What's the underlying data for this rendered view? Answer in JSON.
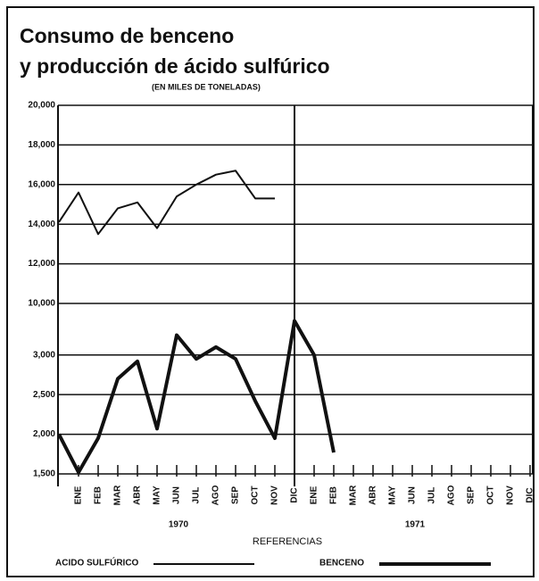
{
  "chart_data": {
    "type": "line",
    "title": "Consumo de benceno",
    "subtitle": "y producción de ácido sulfúrico",
    "note": "(EN MILES DE TONELADAS)",
    "categories": [
      null,
      "ENE",
      "FEB",
      "MAR",
      "ABR",
      "MAY",
      "JUN",
      "JUL",
      "AGO",
      "SEP",
      "OCT",
      "NOV",
      "DIC",
      "ENE",
      "FEB",
      "MAR",
      "ABR",
      "MAY",
      "JUN",
      "JUL",
      "AGO",
      "SEP",
      "OCT",
      "NOV",
      "DIC"
    ],
    "year_labels": [
      "1970",
      "1971"
    ],
    "legend_title": "REFERENCIAS",
    "grid": true,
    "series": [
      {
        "name": "ACIDO SULFÚRICO",
        "color": "#111111",
        "line_width": 2,
        "values": [
          14100,
          15600,
          13500,
          14800,
          15100,
          13800,
          15400,
          16000,
          16500,
          16700,
          15300,
          15300,
          null,
          null,
          null,
          null,
          null,
          null,
          null,
          null,
          null,
          null,
          null,
          null,
          null
        ],
        "ylim": [
          10000,
          20000
        ],
        "yticks": [
          {
            "value": 10000,
            "label": "10,000"
          },
          {
            "value": 12000,
            "label": "12,000"
          },
          {
            "value": 14000,
            "label": "14,000"
          },
          {
            "value": 16000,
            "label": "16,000"
          },
          {
            "value": 18000,
            "label": "18,000"
          },
          {
            "value": 20000,
            "label": "20,000"
          }
        ]
      },
      {
        "name": "BENCENO",
        "color": "#111111",
        "line_width": 4,
        "values": [
          2000,
          1520,
          1950,
          2700,
          2920,
          2070,
          3250,
          2950,
          3100,
          2950,
          2420,
          1950,
          3430,
          3000,
          1770,
          null,
          null,
          null,
          null,
          null,
          null,
          null,
          null,
          null,
          null
        ],
        "ylim": [
          1500,
          3650
        ],
        "yticks": [
          {
            "value": 1500,
            "label": "1,500"
          },
          {
            "value": 2000,
            "label": "2,000"
          },
          {
            "value": 2500,
            "label": "2,500"
          },
          {
            "value": 3000,
            "label": "3,000"
          }
        ]
      }
    ]
  }
}
